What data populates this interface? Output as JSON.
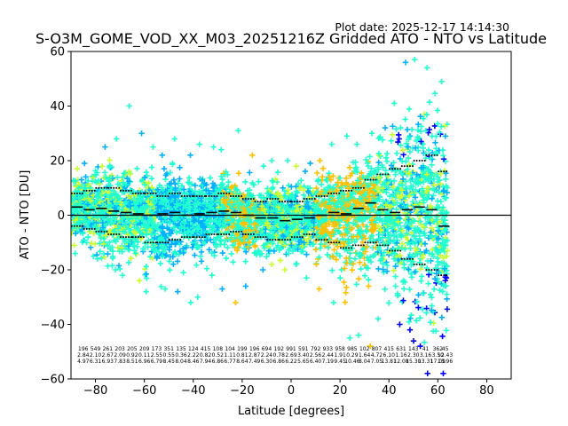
{
  "figure": {
    "plot_date": "Plot date: 2025-12-17 14:14:30"
  },
  "chart_data": {
    "type": "scatter",
    "title": "S-O3M_GOME_VOD_XX_M03_20251216Z Gridded ATO - NTO vs Latitude",
    "xlabel": "Latitude [degrees]",
    "ylabel": "ATO - NTO [DU]",
    "xlim": [
      -90,
      90
    ],
    "ylim": [
      -60,
      60
    ],
    "xticks": [
      -80,
      -60,
      -40,
      -20,
      0,
      20,
      40,
      60,
      80
    ],
    "yticks": [
      -60,
      -40,
      -20,
      0,
      20,
      40,
      60
    ],
    "xtick_labels": [
      "−80",
      "−60",
      "−40",
      "−20",
      "0",
      "20",
      "40",
      "60",
      "80"
    ],
    "ytick_labels": [
      "−60",
      "−40",
      "−20",
      "0",
      "20",
      "40",
      "60"
    ],
    "zero_line": 0,
    "marker": "+",
    "colors": {
      "low": "#0000ff",
      "mid_low": "#00b0ff",
      "mid": "#20ffd0",
      "mid_high": "#c8ff30",
      "high": "#ffc000"
    },
    "bins": {
      "lat": [
        -87.5,
        -82.5,
        -77.5,
        -72.5,
        -67.5,
        -62.5,
        -57.5,
        -52.5,
        -47.5,
        -42.5,
        -37.5,
        -32.5,
        -27.5,
        -22.5,
        -17.5,
        -12.5,
        -7.5,
        -2.5,
        2.5,
        7.5,
        12.5,
        17.5,
        22.5,
        27.5,
        32.5,
        37.5,
        42.5,
        47.5,
        52.5,
        57.5,
        62.5
      ],
      "mean": [
        3,
        2,
        2.5,
        1.5,
        1,
        0.5,
        0,
        0.5,
        1,
        0,
        0.5,
        1,
        1.5,
        1,
        0,
        -1,
        -1,
        -2,
        -1.5,
        -1,
        0,
        1,
        0.5,
        2.5,
        4.5,
        2,
        1,
        2,
        3,
        2,
        -4
      ],
      "upper": [
        8,
        9,
        10,
        10,
        9,
        8,
        8,
        7,
        8,
        7,
        7,
        7,
        8,
        7,
        6,
        5,
        6,
        5,
        5,
        6,
        7,
        8,
        9,
        10,
        13,
        15,
        17,
        18,
        20,
        22,
        16
      ],
      "lower": [
        -4,
        -5,
        -6,
        -7,
        -8,
        -8,
        -10,
        -10,
        -9,
        -8,
        -8,
        -7,
        -7,
        -6,
        -7,
        -8,
        -9,
        -9,
        -8,
        -7,
        -9,
        -10,
        -12,
        -11,
        -10,
        -11,
        -13,
        -16,
        -18,
        -20,
        -22
      ],
      "min": [
        -14,
        -15,
        -16,
        -20,
        -22,
        -24,
        -28,
        -27,
        -28,
        -32,
        -30,
        -22,
        -27,
        -32,
        -26,
        -20,
        -18,
        -20,
        -18,
        -23,
        -27,
        -32,
        -45,
        -44,
        -48,
        -38,
        -40,
        -42,
        -48,
        -58,
        -58
      ],
      "max": [
        17,
        19,
        25,
        28,
        40,
        30,
        25,
        22,
        28,
        22,
        26,
        25,
        24,
        31,
        22,
        18,
        20,
        20,
        18,
        19,
        20,
        26,
        29,
        26,
        30,
        32,
        41,
        56,
        57,
        54,
        49
      ]
    },
    "bin_stats": [
      {
        "lat": -85,
        "n": "196",
        "mean": "2.84",
        "sd": "4.97"
      },
      {
        "lat": -80,
        "n": "549",
        "mean": "2.10",
        "sd": "6.31"
      },
      {
        "lat": -75,
        "n": "261",
        "mean": "2.67",
        "sd": "6.93"
      },
      {
        "lat": -70,
        "n": "203",
        "mean": "2.09",
        "sd": "7.83"
      },
      {
        "lat": -65,
        "n": "205",
        "mean": "0.92",
        "sd": "8.51"
      },
      {
        "lat": -60,
        "n": "209",
        "mean": "0.11",
        "sd": "6.96"
      },
      {
        "lat": -55,
        "n": "173",
        "mean": "2.55",
        "sd": "6.79"
      },
      {
        "lat": -50,
        "n": "351",
        "mean": "0.55",
        "sd": "8.45"
      },
      {
        "lat": -45,
        "n": "135",
        "mean": "0.36",
        "sd": "8.04"
      },
      {
        "lat": -40,
        "n": "124",
        "mean": "2.22",
        "sd": "8.46"
      },
      {
        "lat": -35,
        "n": "415",
        "mean": "0.82",
        "sd": "7.94"
      },
      {
        "lat": -30,
        "n": "108",
        "mean": "0.52",
        "sd": "6.86"
      },
      {
        "lat": -25,
        "n": "104",
        "mean": "1.11",
        "sd": "6.77"
      },
      {
        "lat": -20,
        "n": "199",
        "mean": "0.81",
        "sd": "8.64"
      },
      {
        "lat": -15,
        "n": "196",
        "mean": "2.87",
        "sd": "7.49"
      },
      {
        "lat": -10,
        "n": "694",
        "mean": "2.24",
        "sd": "6.30"
      },
      {
        "lat": -5,
        "n": "192",
        "mean": "0.78",
        "sd": "6.86"
      },
      {
        "lat": 0,
        "n": "991",
        "mean": "2.69",
        "sd": "6.22"
      },
      {
        "lat": 5,
        "n": "591",
        "mean": "3.40",
        "sd": "5.65"
      },
      {
        "lat": 10,
        "n": "792",
        "mean": "2.56",
        "sd": "6.40"
      },
      {
        "lat": 15,
        "n": "933",
        "mean": "2.44",
        "sd": "7.19"
      },
      {
        "lat": 20,
        "n": "958",
        "mean": "1.91",
        "sd": "9.45"
      },
      {
        "lat": 25,
        "n": "985",
        "mean": "0.29",
        "sd": "10.46"
      },
      {
        "lat": 30,
        "n": "102",
        "mean": "1.64",
        "sd": "8.04"
      },
      {
        "lat": 35,
        "n": "807",
        "mean": "4.72",
        "sd": "7.05"
      },
      {
        "lat": 40,
        "n": "415",
        "mean": "6.10",
        "sd": "13.81"
      },
      {
        "lat": 45,
        "n": "631",
        "mean": "1.16",
        "sd": "12.08"
      },
      {
        "lat": 50,
        "n": "143",
        "mean": "2.30",
        "sd": "15.30"
      },
      {
        "lat": 55,
        "n": "41",
        "mean": "3.16",
        "sd": "13.31"
      },
      {
        "lat": 60,
        "n": "362",
        "mean": "3.50",
        "sd": "17.09"
      },
      {
        "lat": 63,
        "n": "45",
        "mean": "12.43",
        "sd": "13.96"
      }
    ]
  }
}
